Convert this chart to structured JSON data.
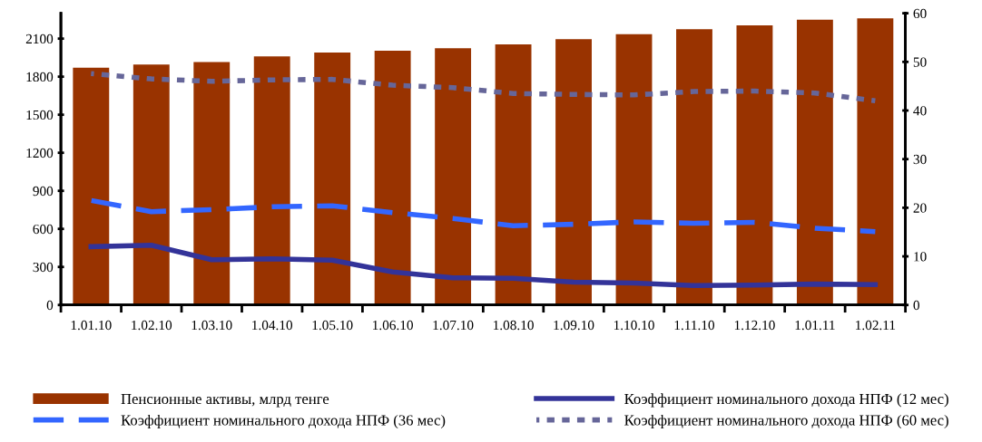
{
  "chart_data": {
    "type": "bar",
    "categories": [
      "1.01.10",
      "1.02.10",
      "1.03.10",
      "1.04.10",
      "1.05.10",
      "1.06.10",
      "1.07.10",
      "1.08.10",
      "1.09.10",
      "1.10.10",
      "1.11.10",
      "1.12.10",
      "1.01.11",
      "1.02.11"
    ],
    "series": [
      {
        "name": "Пенсионные активы, млрд тенге",
        "color": "#993300",
        "values": [
          1870,
          1895,
          1915,
          1960,
          1990,
          2005,
          2025,
          2055,
          2095,
          2135,
          2175,
          2205,
          2250,
          2260
        ]
      },
      {
        "name": "Коэффициент номинального дохода НПФ (12 мес)",
        "type": "line",
        "axis": "y2",
        "line_style": "solid",
        "color": "#333399",
        "values": [
          12,
          12.3,
          9.3,
          9.5,
          9.2,
          6.8,
          5.6,
          5.5,
          4.7,
          4.5,
          4.0,
          4.1,
          4.3,
          4.2
        ]
      },
      {
        "name": "Коэффициент номинального дохода НПФ (36 мес)",
        "type": "line",
        "axis": "y2",
        "line_style": "dashed",
        "color": "#3366ff",
        "values": [
          21.5,
          19.2,
          19.6,
          20.2,
          20.4,
          19.0,
          17.8,
          16.3,
          16.6,
          17.1,
          16.8,
          17.0,
          15.8,
          15.1
        ]
      },
      {
        "name": "Коэффициент номинального дохода НПФ (60 мес)",
        "type": "line",
        "axis": "y2",
        "line_style": "dotted",
        "color": "#666699",
        "values": [
          47.6,
          46.5,
          46.0,
          46.3,
          46.4,
          45.2,
          44.7,
          43.5,
          43.3,
          43.2,
          43.9,
          44.0,
          43.6,
          42.0
        ]
      }
    ],
    "ylim": [
      0,
      2300
    ],
    "yticks": [
      0,
      300,
      600,
      900,
      1200,
      1500,
      1800,
      2100
    ],
    "y2lim": [
      0,
      60
    ],
    "y2ticks": [
      0,
      10,
      20,
      30,
      40,
      50,
      60
    ],
    "grid": false,
    "legend": "bottom",
    "marker": "none"
  }
}
